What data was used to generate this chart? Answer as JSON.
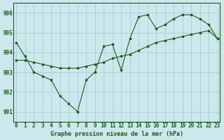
{
  "title": "Graphe pression niveau de la mer (hPa)",
  "bg_color": "#cce8ec",
  "grid_color": "#aacdd4",
  "line_color": "#1a5c1a",
  "ylim": [
    990.5,
    996.5
  ],
  "xlim": [
    -0.3,
    23.3
  ],
  "yticks": [
    991,
    992,
    993,
    994,
    995,
    996
  ],
  "xticks": [
    0,
    1,
    2,
    3,
    4,
    5,
    6,
    7,
    8,
    9,
    10,
    11,
    12,
    13,
    14,
    15,
    16,
    17,
    18,
    19,
    20,
    21,
    22,
    23
  ],
  "series1_x": [
    0,
    1,
    2,
    3,
    4,
    5,
    6,
    7,
    8,
    9,
    10,
    11,
    12,
    13,
    14,
    15,
    16,
    17,
    18,
    19,
    20,
    21,
    22,
    23
  ],
  "series1_y": [
    994.5,
    993.8,
    993.0,
    992.8,
    992.6,
    991.8,
    991.4,
    991.0,
    992.6,
    993.0,
    994.3,
    994.4,
    993.1,
    994.7,
    995.8,
    995.9,
    995.2,
    995.4,
    995.7,
    995.9,
    995.9,
    995.7,
    995.4,
    994.7
  ],
  "series2_x": [
    0,
    1,
    2,
    3,
    4,
    5,
    6,
    7,
    8,
    9,
    10,
    11,
    12,
    13,
    14,
    15,
    16,
    17,
    18,
    19,
    20,
    21,
    22,
    23
  ],
  "series2_y": [
    993.6,
    993.6,
    993.5,
    993.4,
    993.3,
    993.2,
    993.2,
    993.2,
    993.3,
    993.4,
    993.5,
    993.7,
    993.8,
    993.9,
    994.1,
    994.3,
    994.5,
    994.6,
    994.7,
    994.8,
    994.9,
    995.0,
    995.1,
    994.7
  ],
  "xlabel_fontsize": 6.0,
  "tick_fontsize": 5.5,
  "ylabel_fontsize": 5.5
}
